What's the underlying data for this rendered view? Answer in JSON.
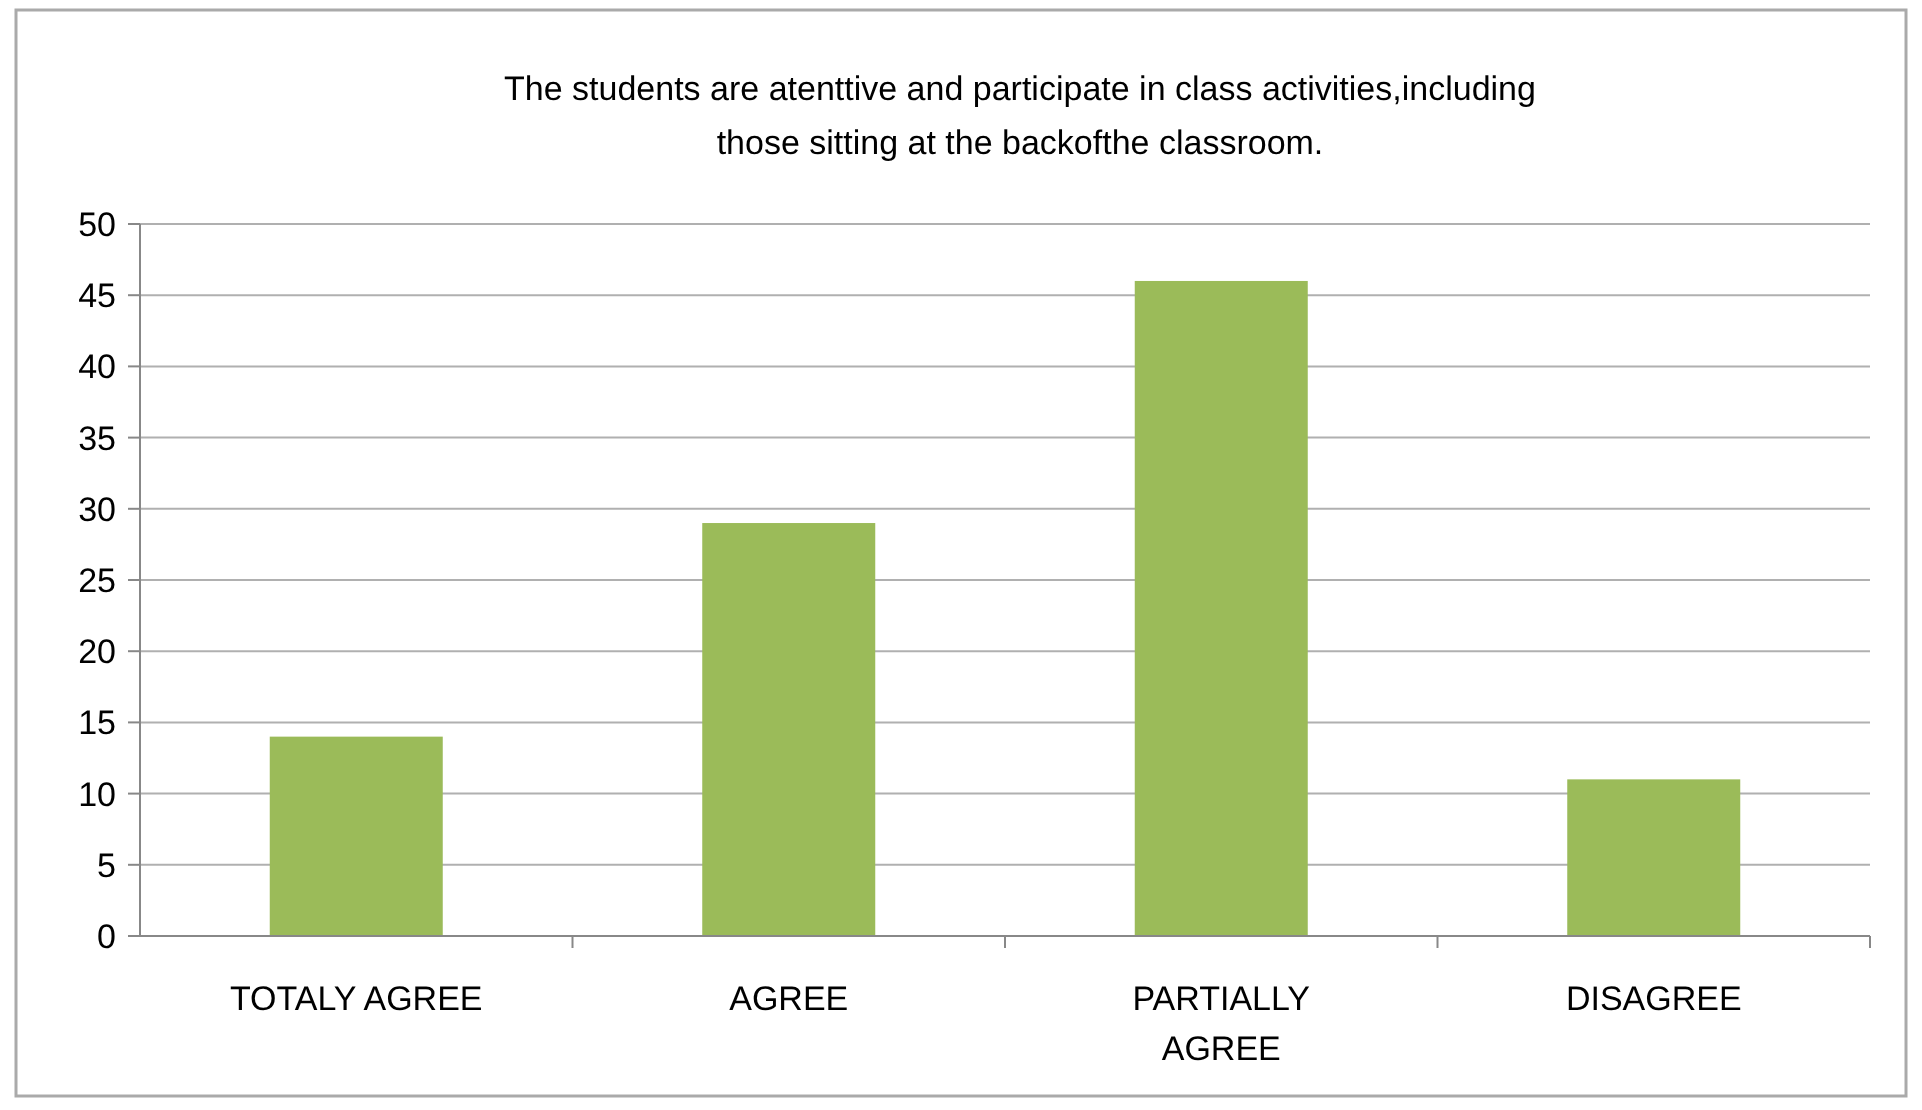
{
  "chart_data": {
    "type": "bar",
    "title": "The students are atenttive and participate in  class activities,including those sitting at the backofthe classroom.",
    "categories": [
      "TOTALY AGREE",
      "AGREE",
      "PARTIALLY AGREE",
      "DISAGREE"
    ],
    "values": [
      14,
      29,
      46,
      11
    ],
    "color": "#9bbb59",
    "ylim": [
      0,
      50
    ],
    "yticks": [
      0,
      5,
      10,
      15,
      20,
      25,
      30,
      35,
      40,
      45,
      50
    ],
    "grid": "y"
  }
}
